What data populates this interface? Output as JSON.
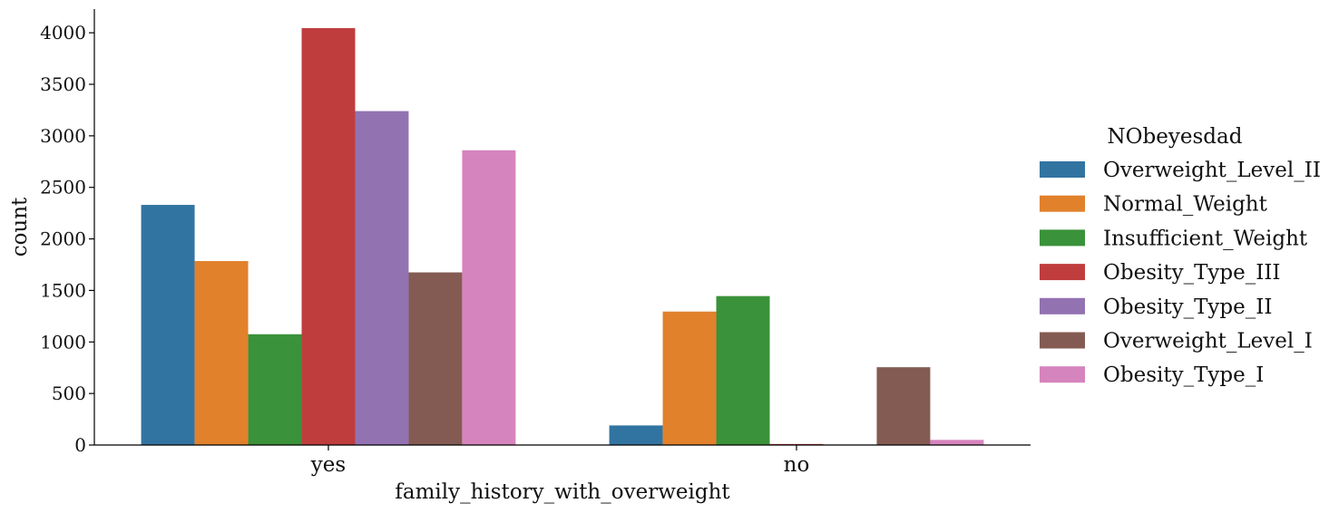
{
  "chart_data": {
    "type": "bar",
    "xlabel": "family_history_with_overweight",
    "ylabel": "count",
    "categories": [
      "yes",
      "no"
    ],
    "ylim": [
      0,
      4230
    ],
    "yticks": [
      0,
      500,
      1000,
      1500,
      2000,
      2500,
      3000,
      3500,
      4000
    ],
    "grid": false,
    "legend_title": "NObeyesdad",
    "legend_position": "right",
    "series": [
      {
        "name": "Overweight_Level_II",
        "color": "#3274a1",
        "values": [
          2330,
          190
        ]
      },
      {
        "name": "Normal_Weight",
        "color": "#e1812c",
        "values": [
          1785,
          1295
        ]
      },
      {
        "name": "Insufficient_Weight",
        "color": "#3a923a",
        "values": [
          1075,
          1445
        ]
      },
      {
        "name": "Obesity_Type_III",
        "color": "#c03d3e",
        "values": [
          4045,
          10
        ]
      },
      {
        "name": "Obesity_Type_II",
        "color": "#9372b2",
        "values": [
          3240,
          5
        ]
      },
      {
        "name": "Overweight_Level_I",
        "color": "#845b53",
        "values": [
          1675,
          755
        ]
      },
      {
        "name": "Obesity_Type_I",
        "color": "#d684bd",
        "values": [
          2860,
          50
        ]
      }
    ]
  }
}
